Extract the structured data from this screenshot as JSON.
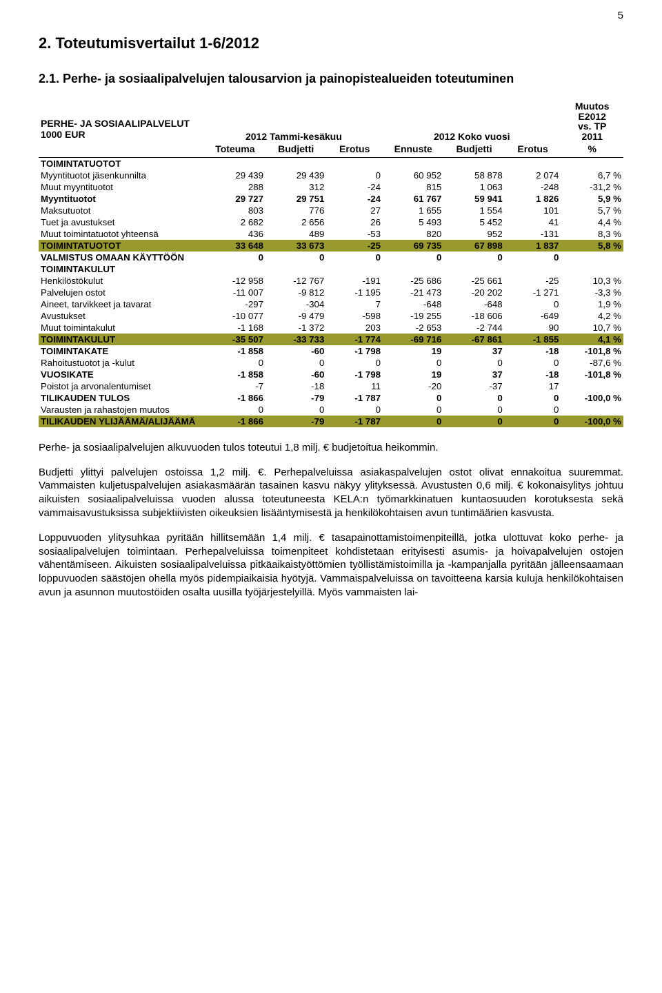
{
  "page_number": "5",
  "h1": "2. Toteutumisvertailut 1-6/2012",
  "h2": "2.1. Perhe- ja sosiaalipalvelujen talousarvion ja painopistealueiden toteutuminen",
  "table": {
    "header": {
      "title_line1": "PERHE- JA SOSIAALIPALVELUT",
      "title_line2": "1000 EUR",
      "col_group1": "2012 Tammi-kesäkuu",
      "col_group2": "2012 Koko vuosi",
      "col_group3a": "Muutos",
      "col_group3b": "E2012",
      "col_group3c": "vs. TP",
      "col_group3d": "2011",
      "sub": [
        "Toteuma",
        "Budjetti",
        "Erotus",
        "Ennuste",
        "Budjetti",
        "Erotus",
        "%"
      ]
    },
    "col_widths": [
      "218px",
      "80px",
      "80px",
      "74px",
      "80px",
      "80px",
      "74px",
      "82px"
    ],
    "colors": {
      "olive": "#98992f"
    },
    "rows": [
      {
        "style": "bold",
        "cells": [
          "TOIMINTATUOTOT",
          "",
          "",
          "",
          "",
          "",
          "",
          ""
        ]
      },
      {
        "style": "",
        "cells": [
          "Myyntituotot jäsenkunnilta",
          "29 439",
          "29 439",
          "0",
          "60 952",
          "58 878",
          "2 074",
          "6,7 %"
        ]
      },
      {
        "style": "",
        "cells": [
          "Muut myyntituotot",
          "288",
          "312",
          "-24",
          "815",
          "1 063",
          "-248",
          "-31,2 %"
        ]
      },
      {
        "style": "bold",
        "cells": [
          "Myyntituotot",
          "29 727",
          "29 751",
          "-24",
          "61 767",
          "59 941",
          "1 826",
          "5,9 %"
        ]
      },
      {
        "style": "",
        "cells": [
          "Maksutuotot",
          "803",
          "776",
          "27",
          "1 655",
          "1 554",
          "101",
          "5,7 %"
        ]
      },
      {
        "style": "",
        "cells": [
          "Tuet ja avustukset",
          "2 682",
          "2 656",
          "26",
          "5 493",
          "5 452",
          "41",
          "4,4 %"
        ]
      },
      {
        "style": "",
        "cells": [
          "Muut toimintatuotot yhteensä",
          "436",
          "489",
          "-53",
          "820",
          "952",
          "-131",
          "8,3 %"
        ]
      },
      {
        "style": "olive",
        "cells": [
          "TOIMINTATUOTOT",
          "33 648",
          "33 673",
          "-25",
          "69 735",
          "67 898",
          "1 837",
          "5,8 %"
        ]
      },
      {
        "style": "bold",
        "cells": [
          "VALMISTUS OMAAN KÄYTTÖÖN",
          "0",
          "0",
          "0",
          "0",
          "0",
          "0",
          ""
        ]
      },
      {
        "style": "bold",
        "cells": [
          "TOIMINTAKULUT",
          "",
          "",
          "",
          "",
          "",
          "",
          ""
        ]
      },
      {
        "style": "",
        "cells": [
          "Henkilöstökulut",
          "-12 958",
          "-12 767",
          "-191",
          "-25 686",
          "-25 661",
          "-25",
          "10,3 %"
        ]
      },
      {
        "style": "",
        "cells": [
          "Palvelujen ostot",
          "-11 007",
          "-9 812",
          "-1 195",
          "-21 473",
          "-20 202",
          "-1 271",
          "-3,3 %"
        ]
      },
      {
        "style": "",
        "cells": [
          "Aineet, tarvikkeet ja tavarat",
          "-297",
          "-304",
          "7",
          "-648",
          "-648",
          "0",
          "1,9 %"
        ]
      },
      {
        "style": "",
        "cells": [
          "Avustukset",
          "-10 077",
          "-9 479",
          "-598",
          "-19 255",
          "-18 606",
          "-649",
          "4,2 %"
        ]
      },
      {
        "style": "",
        "cells": [
          "Muut toimintakulut",
          "-1 168",
          "-1 372",
          "203",
          "-2 653",
          "-2 744",
          "90",
          "10,7 %"
        ]
      },
      {
        "style": "olive",
        "cells": [
          "TOIMINTAKULUT",
          "-35 507",
          "-33 733",
          "-1 774",
          "-69 716",
          "-67 861",
          "-1 855",
          "4,1 %"
        ]
      },
      {
        "style": "bold",
        "cells": [
          "TOIMINTAKATE",
          "-1 858",
          "-60",
          "-1 798",
          "19",
          "37",
          "-18",
          "-101,8 %"
        ]
      },
      {
        "style": "",
        "cells": [
          "Rahoitustuotot ja -kulut",
          "0",
          "0",
          "0",
          "0",
          "0",
          "0",
          "-87,6 %"
        ]
      },
      {
        "style": "bold",
        "cells": [
          "VUOSIKATE",
          "-1 858",
          "-60",
          "-1 798",
          "19",
          "37",
          "-18",
          "-101,8 %"
        ]
      },
      {
        "style": "",
        "cells": [
          "Poistot ja arvonalentumiset",
          "-7",
          "-18",
          "11",
          "-20",
          "-37",
          "17",
          ""
        ]
      },
      {
        "style": "bold",
        "cells": [
          "TILIKAUDEN TULOS",
          "-1 866",
          "-79",
          "-1 787",
          "0",
          "0",
          "0",
          "-100,0 %"
        ]
      },
      {
        "style": "",
        "cells": [
          "Varausten ja rahastojen muutos",
          "0",
          "0",
          "0",
          "0",
          "0",
          "0",
          ""
        ]
      },
      {
        "style": "olive",
        "cells": [
          "TILIKAUDEN YLIJÄÄMÄ/ALIJÄÄMÄ",
          "-1 866",
          "-79",
          "-1 787",
          "0",
          "0",
          "0",
          "-100,0 %"
        ]
      }
    ]
  },
  "paragraphs": [
    "Perhe- ja sosiaalipalvelujen alkuvuoden tulos toteutui 1,8 milj. € budjetoitua heikommin.",
    "Budjetti ylittyi palvelujen ostoissa 1,2 milj. €. Perhepalveluissa asiakaspalvelujen ostot olivat ennakoitua suuremmat. Vammaisten kuljetuspalvelujen asiakasmäärän tasainen kasvu näkyy ylityksessä. Avustusten 0,6 milj. € kokonaisylitys johtuu aikuisten sosiaalipalveluissa vuoden alussa toteutuneesta KELA:n työmarkkinatuen kuntaosuuden korotuksesta sekä vammaisavustuksissa subjektiivisten oikeuksien lisääntymisestä ja henkilökohtaisen avun tuntimäärien kasvusta.",
    "Loppuvuoden ylitysuhkaa pyritään hillitsemään 1,4 milj. € tasapainottamistoimenpiteillä, jotka ulottuvat koko perhe- ja sosiaalipalvelujen toimintaan. Perhepalveluissa toimenpiteet kohdistetaan erityisesti asumis- ja hoivapalvelujen ostojen vähentämiseen. Aikuisten sosiaalipalveluissa pitkäaikaistyöttömien työllistämistoimilla ja -kampanjalla pyritään jälleensaamaan loppuvuoden säästöjen ohella myös pidempiaikaisia hyötyjä. Vammaispalveluissa on tavoitteena karsia kuluja henkilökohtaisen avun ja asunnon muutostöiden osalta uusilla työjärjestelyillä. Myös vammaisten lai-"
  ]
}
